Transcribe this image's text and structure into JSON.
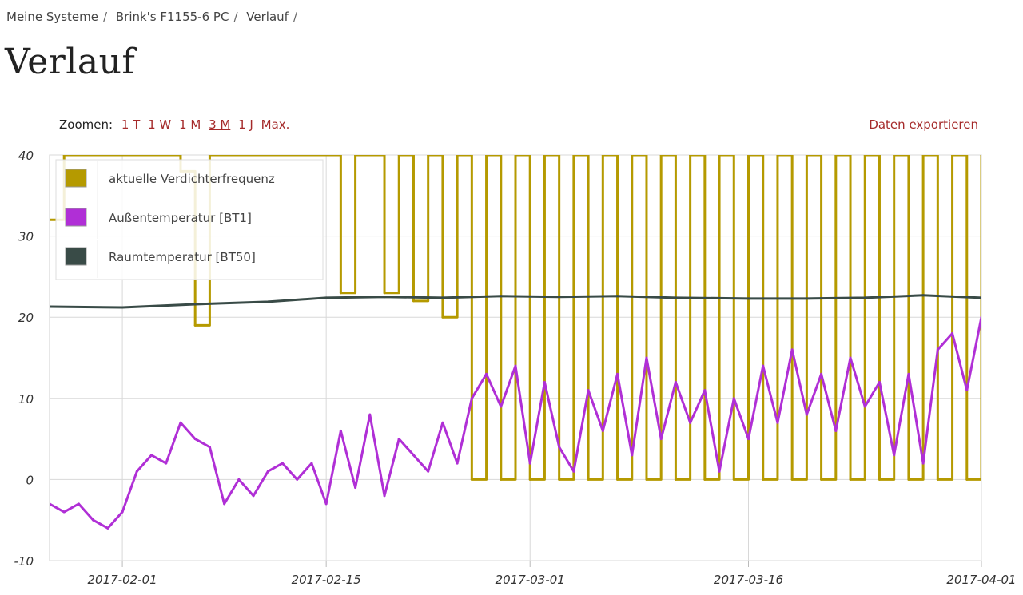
{
  "breadcrumb": [
    "Meine Systeme",
    "Brink's F1155-6 PC",
    "Verlauf"
  ],
  "page_title": "Verlauf",
  "zoom": {
    "label": "Zoomen:",
    "options": [
      "1 T",
      "1 W",
      "1 M",
      "3 M",
      "1 J",
      "Max."
    ],
    "active": "3 M"
  },
  "export_label": "Daten exportieren",
  "colors": {
    "compressor": "#b59a00",
    "outdoor": "#b02fd6",
    "room": "#394b47",
    "grid": "#d8d8d8"
  },
  "chart_data": {
    "type": "line",
    "title": "",
    "xlabel": "",
    "ylabel": "",
    "ylim": [
      -10,
      40
    ],
    "xlim": [
      "2017-01-27",
      "2017-04-01"
    ],
    "y_ticks": [
      40,
      30,
      20,
      10,
      0,
      -10
    ],
    "x_ticks": [
      "2017-02-01",
      "2017-02-15",
      "2017-03-01",
      "2017-03-16",
      "2017-04-01"
    ],
    "grid": true,
    "legend_position": "top-left",
    "series": [
      {
        "name": "aktuelle Verdichterfrequenz",
        "color": "#b59a00",
        "x": [
          "2017-01-27",
          "2017-01-28",
          "2017-01-29",
          "2017-01-30",
          "2017-01-31",
          "2017-02-01",
          "2017-02-02",
          "2017-02-03",
          "2017-02-04",
          "2017-02-05",
          "2017-02-06",
          "2017-02-07",
          "2017-02-08",
          "2017-02-09",
          "2017-02-10",
          "2017-02-11",
          "2017-02-12",
          "2017-02-13",
          "2017-02-14",
          "2017-02-15",
          "2017-02-16",
          "2017-02-17",
          "2017-02-18",
          "2017-02-19",
          "2017-02-20",
          "2017-02-21",
          "2017-02-22",
          "2017-02-23",
          "2017-02-24",
          "2017-02-25",
          "2017-02-26",
          "2017-02-27",
          "2017-02-28",
          "2017-03-01",
          "2017-03-02",
          "2017-03-03",
          "2017-03-04",
          "2017-03-05",
          "2017-03-06",
          "2017-03-07",
          "2017-03-08",
          "2017-03-09",
          "2017-03-10",
          "2017-03-11",
          "2017-03-12",
          "2017-03-13",
          "2017-03-14",
          "2017-03-15",
          "2017-03-16",
          "2017-03-17",
          "2017-03-18",
          "2017-03-19",
          "2017-03-20",
          "2017-03-21",
          "2017-03-22",
          "2017-03-23",
          "2017-03-24",
          "2017-03-25",
          "2017-03-26",
          "2017-03-27",
          "2017-03-28",
          "2017-03-29",
          "2017-03-30",
          "2017-03-31",
          "2017-04-01"
        ],
        "values": [
          32,
          40,
          40,
          40,
          40,
          40,
          40,
          40,
          40,
          38,
          19,
          40,
          40,
          40,
          40,
          40,
          40,
          40,
          40,
          40,
          23,
          40,
          40,
          23,
          40,
          22,
          40,
          20,
          40,
          0,
          40,
          0,
          40,
          0,
          40,
          0,
          40,
          0,
          40,
          0,
          40,
          0,
          40,
          0,
          40,
          0,
          40,
          0,
          40,
          0,
          40,
          0,
          40,
          0,
          40,
          0,
          40,
          0,
          40,
          0,
          40,
          0,
          40,
          0,
          40
        ]
      },
      {
        "name": "Außentemperatur [BT1]",
        "color": "#b02fd6",
        "x": [
          "2017-01-27",
          "2017-01-28",
          "2017-01-29",
          "2017-01-30",
          "2017-01-31",
          "2017-02-01",
          "2017-02-02",
          "2017-02-03",
          "2017-02-04",
          "2017-02-05",
          "2017-02-06",
          "2017-02-07",
          "2017-02-08",
          "2017-02-09",
          "2017-02-10",
          "2017-02-11",
          "2017-02-12",
          "2017-02-13",
          "2017-02-14",
          "2017-02-15",
          "2017-02-16",
          "2017-02-17",
          "2017-02-18",
          "2017-02-19",
          "2017-02-20",
          "2017-02-21",
          "2017-02-22",
          "2017-02-23",
          "2017-02-24",
          "2017-02-25",
          "2017-02-26",
          "2017-02-27",
          "2017-02-28",
          "2017-03-01",
          "2017-03-02",
          "2017-03-03",
          "2017-03-04",
          "2017-03-05",
          "2017-03-06",
          "2017-03-07",
          "2017-03-08",
          "2017-03-09",
          "2017-03-10",
          "2017-03-11",
          "2017-03-12",
          "2017-03-13",
          "2017-03-14",
          "2017-03-15",
          "2017-03-16",
          "2017-03-17",
          "2017-03-18",
          "2017-03-19",
          "2017-03-20",
          "2017-03-21",
          "2017-03-22",
          "2017-03-23",
          "2017-03-24",
          "2017-03-25",
          "2017-03-26",
          "2017-03-27",
          "2017-03-28",
          "2017-03-29",
          "2017-03-30",
          "2017-03-31",
          "2017-04-01"
        ],
        "values": [
          -3,
          -4,
          -3,
          -5,
          -6,
          -4,
          1,
          3,
          2,
          7,
          5,
          4,
          -3,
          0,
          -2,
          1,
          2,
          0,
          2,
          -3,
          6,
          -1,
          8,
          -2,
          5,
          3,
          1,
          7,
          2,
          10,
          13,
          9,
          14,
          2,
          12,
          4,
          1,
          11,
          6,
          13,
          3,
          15,
          5,
          12,
          7,
          11,
          1,
          10,
          5,
          14,
          7,
          16,
          8,
          13,
          6,
          15,
          9,
          12,
          3,
          13,
          2,
          16,
          18,
          11,
          20
        ]
      },
      {
        "name": "Raumtemperatur [BT50]",
        "color": "#394b47",
        "x": [
          "2017-01-27",
          "2017-02-01",
          "2017-02-06",
          "2017-02-11",
          "2017-02-15",
          "2017-02-19",
          "2017-02-23",
          "2017-02-27",
          "2017-03-03",
          "2017-03-07",
          "2017-03-11",
          "2017-03-16",
          "2017-03-20",
          "2017-03-24",
          "2017-03-28",
          "2017-04-01"
        ],
        "values": [
          21.3,
          21.2,
          21.6,
          21.9,
          22.4,
          22.5,
          22.4,
          22.6,
          22.5,
          22.6,
          22.4,
          22.3,
          22.3,
          22.4,
          22.7,
          22.4
        ]
      }
    ]
  }
}
